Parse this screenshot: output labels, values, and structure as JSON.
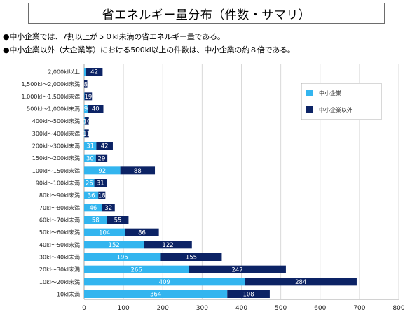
{
  "title": "省エネルギー量分布（件数・サマリ）",
  "bullets": [
    "●中小企業では、7割以上が５０kl未満の省エネルギー量である。",
    "●中小企業以外（大企業等）における500kl以上の件数は、中小企業の約８倍である。"
  ],
  "colors": {
    "sme": "#33b5ef",
    "large": "#0c2365",
    "grid": "#d9d9d9",
    "axis": "#a6a6a6"
  },
  "chart_data": {
    "type": "bar",
    "orientation": "horizontal",
    "stacked": true,
    "categories": [
      "2,000kl以上",
      "1,500kl～2,000kl未満",
      "1,000kl～1,500kl未満",
      "500kl～1,000kl未満",
      "400kl～500kl未満",
      "300kl～400kl未満",
      "200kl～300kl未満",
      "150kl～200kl未満",
      "100kl～150kl未満",
      "90kl～100kl未満",
      "80kl～90kl未満",
      "70kl～80kl未満",
      "60kl～70kl未満",
      "50kl～60kl未満",
      "40kl～50kl未満",
      "30kl～40kl未満",
      "20kl～30kl未満",
      "10kl～20kl未満",
      "10kl未満"
    ],
    "series": [
      {
        "name": "中小企業",
        "values": [
          5,
          0,
          1,
          9,
          2,
          1,
          31,
          30,
          92,
          26,
          36,
          46,
          58,
          104,
          152,
          195,
          266,
          409,
          364
        ]
      },
      {
        "name": "中小企業以外",
        "values": [
          42,
          8,
          19,
          40,
          10,
          11,
          42,
          29,
          88,
          31,
          18,
          32,
          55,
          86,
          122,
          155,
          247,
          284,
          108
        ]
      }
    ],
    "data_labels": [
      [
        "",
        "42"
      ],
      [
        "",
        "8"
      ],
      [
        "",
        "19"
      ],
      [
        "9",
        "40"
      ],
      [
        "",
        "10"
      ],
      [
        "",
        "11"
      ],
      [
        "31",
        "42"
      ],
      [
        "30",
        "29"
      ],
      [
        "92",
        "88"
      ],
      [
        "26",
        "31"
      ],
      [
        "36",
        "18"
      ],
      [
        "46",
        "32"
      ],
      [
        "58",
        "55"
      ],
      [
        "104",
        "86"
      ],
      [
        "152",
        "122"
      ],
      [
        "195",
        "155"
      ],
      [
        "266",
        "247"
      ],
      [
        "409",
        "284"
      ],
      [
        "364",
        "108"
      ]
    ],
    "xlim": [
      0,
      800
    ],
    "xticks": [
      "0",
      "100",
      "200",
      "300",
      "400",
      "500",
      "600",
      "700",
      "800"
    ],
    "grid": true,
    "legend_position": "top-right"
  }
}
